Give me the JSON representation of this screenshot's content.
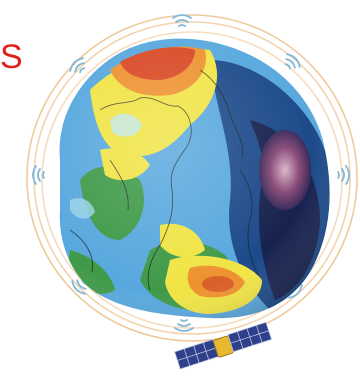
{
  "caption": {
    "text": "S",
    "color": "#e0201a"
  },
  "colors": {
    "orbit": "#f0c89a",
    "signal": "#7fb8d8",
    "ocean": "#58a8de",
    "land_green": "#3f9a48",
    "high_yellow": "#f0e445",
    "high_orange": "#ee9230",
    "high_red": "#d94824",
    "low_blue": "#1c4a8a",
    "low_dark": "#17224f",
    "low_purple": "#8a4a78",
    "coast": "#1a1a1a",
    "satellite_panel": "#2e3f8c",
    "satellite_body": "#e8b830"
  },
  "icons": [
    "signal-waves-icon",
    "satellite-icon",
    "geoid-globe"
  ]
}
